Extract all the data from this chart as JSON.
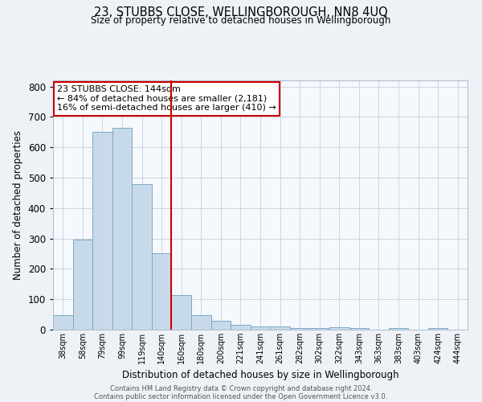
{
  "title": "23, STUBBS CLOSE, WELLINGBOROUGH, NN8 4UQ",
  "subtitle": "Size of property relative to detached houses in Wellingborough",
  "xlabel": "Distribution of detached houses by size in Wellingborough",
  "ylabel": "Number of detached properties",
  "categories": [
    "38sqm",
    "58sqm",
    "79sqm",
    "99sqm",
    "119sqm",
    "140sqm",
    "160sqm",
    "180sqm",
    "200sqm",
    "221sqm",
    "241sqm",
    "261sqm",
    "282sqm",
    "302sqm",
    "322sqm",
    "343sqm",
    "363sqm",
    "383sqm",
    "403sqm",
    "424sqm",
    "444sqm"
  ],
  "values": [
    47,
    295,
    650,
    665,
    480,
    252,
    113,
    48,
    28,
    15,
    10,
    10,
    5,
    5,
    8,
    5,
    0,
    5,
    0,
    5,
    0
  ],
  "bar_color": "#c8daea",
  "bar_edge_color": "#7aaac8",
  "property_line_index": 5.5,
  "property_line_color": "#cc0000",
  "annotation_box_color": "#cc0000",
  "annotation_text_line1": "23 STUBBS CLOSE: 144sqm",
  "annotation_text_line2": "← 84% of detached houses are smaller (2,181)",
  "annotation_text_line3": "16% of semi-detached houses are larger (410) →",
  "ylim": [
    0,
    820
  ],
  "yticks": [
    0,
    100,
    200,
    300,
    400,
    500,
    600,
    700,
    800
  ],
  "footer_line1": "Contains HM Land Registry data © Crown copyright and database right 2024.",
  "footer_line2": "Contains public sector information licensed under the Open Government Licence v3.0.",
  "background_color": "#eef2f7",
  "plot_background_color": "#f5f8fc",
  "grid_color": "#cdd5df"
}
